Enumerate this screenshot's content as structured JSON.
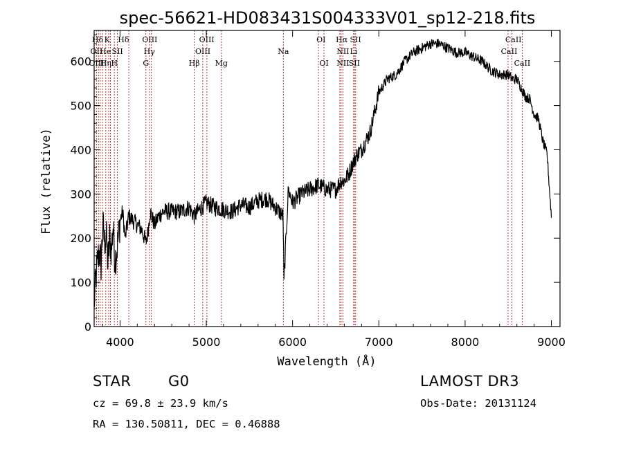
{
  "chart_data": {
    "type": "line",
    "title": "spec-56621-HD083431S004333V01_sp12-218.fits",
    "xlabel": "Wavelength (Å)",
    "ylabel": "Flux (relative)",
    "xlim": [
      3700,
      9100
    ],
    "ylim": [
      0,
      670
    ],
    "xticks": [
      4000,
      5000,
      6000,
      7000,
      8000,
      9000
    ],
    "yticks": [
      0,
      100,
      200,
      300,
      400,
      500,
      600
    ],
    "grid": false,
    "series": [
      {
        "name": "spectrum",
        "color": "#000000",
        "x": [
          3700,
          3720,
          3740,
          3760,
          3780,
          3800,
          3820,
          3840,
          3860,
          3880,
          3900,
          3920,
          3940,
          3960,
          3980,
          4000,
          4030,
          4060,
          4100,
          4150,
          4200,
          4250,
          4300,
          4320,
          4350,
          4400,
          4450,
          4500,
          4600,
          4700,
          4800,
          4860,
          4900,
          5000,
          5100,
          5200,
          5300,
          5400,
          5500,
          5600,
          5700,
          5800,
          5890,
          5900,
          5950,
          6000,
          6100,
          6200,
          6300,
          6400,
          6500,
          6560,
          6600,
          6650,
          6700,
          6750,
          6800,
          6900,
          7000,
          7100,
          7200,
          7300,
          7400,
          7500,
          7600,
          7700,
          7800,
          7900,
          8000,
          8100,
          8200,
          8300,
          8400,
          8500,
          8550,
          8600,
          8650,
          8700,
          8750,
          8800,
          8850,
          8900,
          8950,
          9000
        ],
        "y": [
          50,
          110,
          150,
          170,
          140,
          230,
          190,
          210,
          140,
          200,
          170,
          230,
          150,
          170,
          200,
          240,
          260,
          200,
          250,
          240,
          230,
          220,
          190,
          210,
          260,
          230,
          250,
          260,
          260,
          260,
          270,
          250,
          260,
          280,
          270,
          265,
          260,
          275,
          270,
          285,
          290,
          270,
          250,
          100,
          310,
          280,
          300,
          310,
          320,
          310,
          310,
          330,
          330,
          345,
          370,
          390,
          400,
          440,
          530,
          560,
          570,
          600,
          620,
          630,
          640,
          640,
          630,
          620,
          620,
          610,
          600,
          580,
          570,
          570,
          560,
          560,
          540,
          520,
          515,
          480,
          470,
          420,
          390,
          250
        ]
      }
    ],
    "lines": {
      "labels": [
        {
          "text": "Hδ",
          "row": 1,
          "wl": 3740
        },
        {
          "text": "K",
          "row": 1,
          "wl": 3850
        },
        {
          "text": "Hδ",
          "row": 1,
          "wl": 4040
        },
        {
          "text": "OIII",
          "row": 1,
          "wl": 4345
        },
        {
          "text": "OIII",
          "row": 1,
          "wl": 5005
        },
        {
          "text": "OI",
          "row": 1,
          "wl": 6330
        },
        {
          "text": "Hα",
          "row": 1,
          "wl": 6570
        },
        {
          "text": "SII",
          "row": 1,
          "wl": 6730
        },
        {
          "text": "CaII",
          "row": 1,
          "wl": 8560
        },
        {
          "text": "OII",
          "row": 2,
          "wl": 3727
        },
        {
          "text": "He",
          "row": 2,
          "wl": 3830
        },
        {
          "text": "SII",
          "row": 2,
          "wl": 3970
        },
        {
          "text": "Hγ",
          "row": 2,
          "wl": 4340
        },
        {
          "text": "OIII",
          "row": 2,
          "wl": 4960
        },
        {
          "text": "Na",
          "row": 2,
          "wl": 5893
        },
        {
          "text": "NII",
          "row": 2,
          "wl": 6584
        },
        {
          "text": "Li",
          "row": 2,
          "wl": 6708
        },
        {
          "text": "CaII",
          "row": 2,
          "wl": 8510
        },
        {
          "text": "OIII",
          "row": 3,
          "wl": 3727
        },
        {
          "text": "Hη",
          "row": 3,
          "wl": 3835
        },
        {
          "text": "H",
          "row": 3,
          "wl": 3935
        },
        {
          "text": "G",
          "row": 3,
          "wl": 4300
        },
        {
          "text": "Hβ",
          "row": 3,
          "wl": 4861
        },
        {
          "text": "Mg",
          "row": 3,
          "wl": 5175
        },
        {
          "text": "OI",
          "row": 3,
          "wl": 6364
        },
        {
          "text": "NII",
          "row": 3,
          "wl": 6584
        },
        {
          "text": "SII",
          "row": 3,
          "wl": 6716
        },
        {
          "text": "CaII",
          "row": 3,
          "wl": 8662
        }
      ],
      "wavelengths": [
        3727,
        3750,
        3770,
        3797,
        3835,
        3869,
        3889,
        3934,
        3968,
        4102,
        4300,
        4340,
        4363,
        4861,
        4959,
        5007,
        5175,
        5893,
        6300,
        6364,
        6548,
        6563,
        6584,
        6708,
        6716,
        6731,
        8498,
        8542,
        8662
      ]
    },
    "line_color": "#b22222"
  },
  "info": {
    "class_label": "STAR",
    "subclass": "G0",
    "survey": "LAMOST DR3",
    "cz": "cz = 69.8 ± 23.9 km/s",
    "obs_date": "Obs-Date: 20131124",
    "coords": "RA = 130.50811, DEC =    0.46888"
  }
}
